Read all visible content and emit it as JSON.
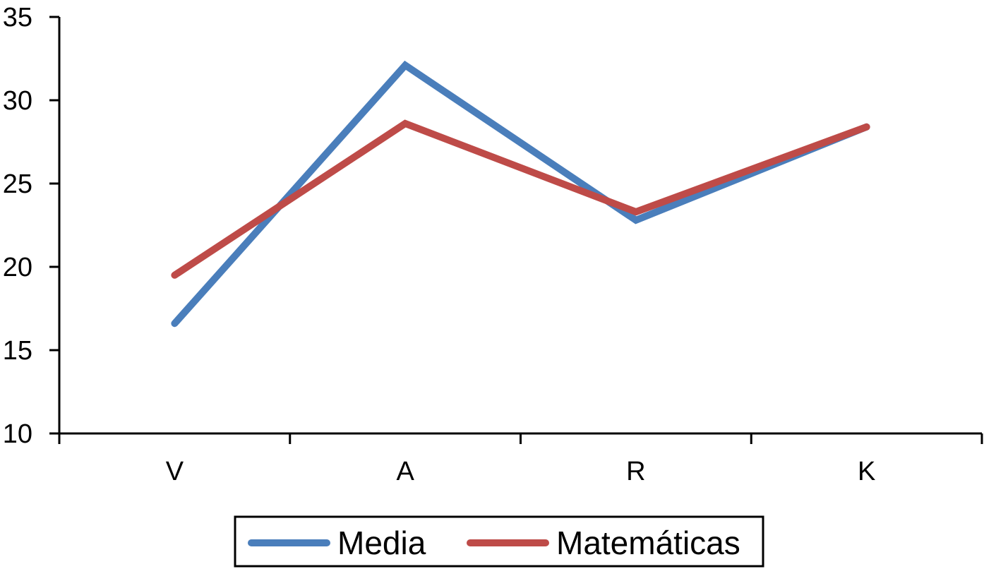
{
  "chart_data": {
    "type": "line",
    "title": "",
    "xlabel": "",
    "ylabel": "",
    "categories": [
      "V",
      "A",
      "R",
      "K"
    ],
    "ylim": [
      10,
      35
    ],
    "yticks": [
      "10",
      "15",
      "20",
      "25",
      "30",
      "35"
    ],
    "grid": false,
    "legend_position": "bottom-center",
    "series": [
      {
        "name": "Media",
        "color": "#4a7ebb",
        "values": [
          16.6,
          32.1,
          22.8,
          28.4
        ]
      },
      {
        "name": "Matemáticas",
        "color": "#be4b48",
        "values": [
          19.5,
          28.6,
          23.3,
          28.4
        ]
      }
    ]
  }
}
